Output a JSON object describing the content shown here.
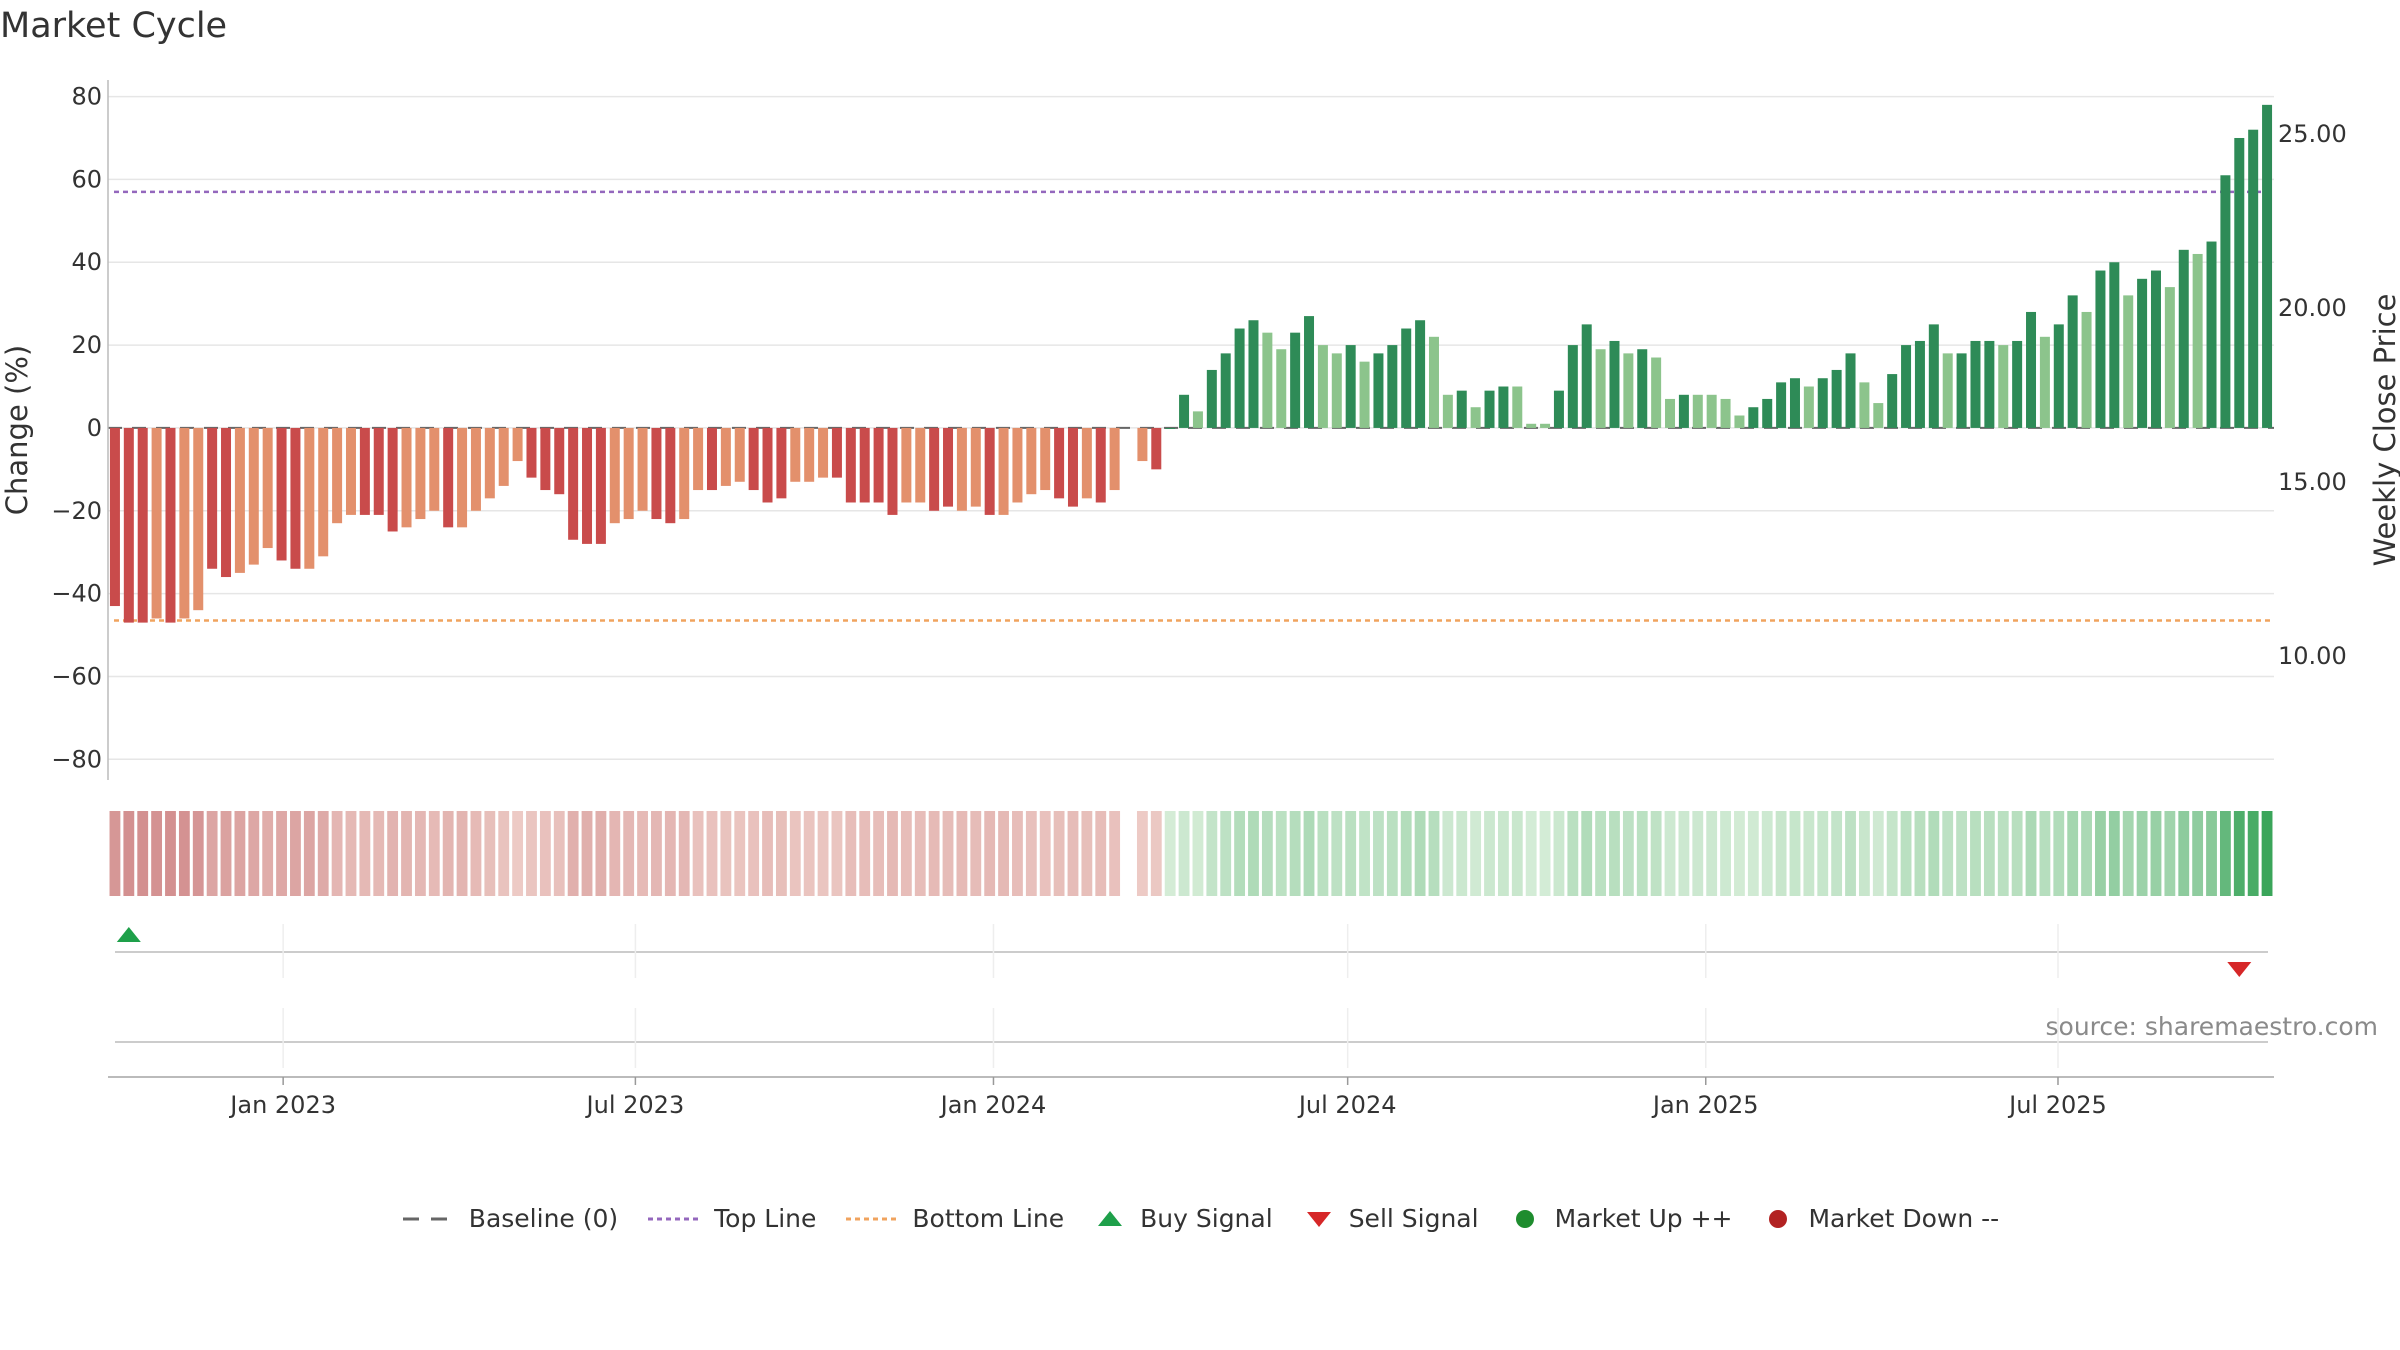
{
  "title": "Market Cycle",
  "source": "source: sharemaestro.com",
  "colors": {
    "neg_strong": "#c94b4b",
    "neg_light": "#e3906c",
    "pos_strong": "#2e8b57",
    "pos_light": "#8cc48c",
    "top_line": "#9467bd",
    "bottom_line": "#f0a35e",
    "buy": "#1ea04a",
    "sell": "#d62728",
    "up_marker": "#1e8c2e",
    "down_marker": "#b22222",
    "baseline": "#666666"
  },
  "legend": [
    {
      "key": "baseline",
      "label": "Baseline (0)",
      "icon": "dash-line-icon"
    },
    {
      "key": "top",
      "label": "Top Line",
      "icon": "dotted-line-icon"
    },
    {
      "key": "bottom",
      "label": "Bottom Line",
      "icon": "dotted-line-icon"
    },
    {
      "key": "buy",
      "label": "Buy Signal",
      "icon": "triangle-up-icon"
    },
    {
      "key": "sell",
      "label": "Sell Signal",
      "icon": "triangle-down-icon"
    },
    {
      "key": "up",
      "label": "Market Up ++",
      "icon": "circle-icon"
    },
    {
      "key": "down",
      "label": "Market Down --",
      "icon": "circle-icon"
    }
  ],
  "chart_data": {
    "type": "bar",
    "title": "Market Cycle",
    "ylabel": "Change (%)",
    "y2label": "Weekly Close Price",
    "ylim": [
      -85,
      84
    ],
    "yticks": [
      80,
      60,
      40,
      20,
      0,
      -20,
      -40,
      -60,
      -80
    ],
    "yticklabels": [
      "80",
      "60",
      "40",
      "20",
      "0",
      "−20",
      "−40",
      "−60",
      "−80"
    ],
    "y2ticks": [
      25.0,
      20.0,
      15.0,
      10.0
    ],
    "y2ticklabels": [
      "25.00",
      "20.00",
      "15.00",
      "10.00"
    ],
    "top_line": 57,
    "bottom_line": -46.5,
    "baseline": 0,
    "x_start": "2022-10-03",
    "x_end": "2025-10-20",
    "xticks": [
      "2023-01-01",
      "2023-07-01",
      "2024-01-01",
      "2024-07-01",
      "2025-01-01",
      "2025-07-01"
    ],
    "xticklabels": [
      "Jan 2023",
      "Jul 2023",
      "Jan 2024",
      "Jul 2024",
      "Jan 2025",
      "Jul 2025"
    ],
    "values": [
      -43,
      -47,
      -47,
      -46,
      -47,
      -46,
      -44,
      -34,
      -36,
      -35,
      -33,
      -29,
      -32,
      -34,
      -34,
      -31,
      -23,
      -21,
      -21,
      -21,
      -25,
      -24,
      -22,
      -20,
      -24,
      -24,
      -20,
      -17,
      -14,
      -8,
      -12,
      -15,
      -16,
      -27,
      -28,
      -28,
      -23,
      -22,
      -20,
      -22,
      -23,
      -22,
      -15,
      -15,
      -14,
      -13,
      -15,
      -18,
      -17,
      -13,
      -13,
      -12,
      -12,
      -18,
      -18,
      -18,
      -21,
      -18,
      -18,
      -20,
      -19,
      -20,
      -19,
      -21,
      -21,
      -18,
      -16,
      -15,
      -17,
      -19,
      -17,
      -18,
      -15,
      null,
      -8,
      -10,
      0,
      8,
      4,
      14,
      18,
      24,
      26,
      23,
      19,
      23,
      27,
      20,
      18,
      20,
      16,
      18,
      20,
      24,
      26,
      22,
      8,
      9,
      5,
      9,
      10,
      10,
      1,
      1,
      9,
      20,
      25,
      19,
      21,
      18,
      19,
      17,
      7,
      8,
      8,
      8,
      7,
      3,
      5,
      7,
      11,
      12,
      10,
      12,
      14,
      18,
      11,
      6,
      13,
      20,
      21,
      25,
      18,
      18,
      21,
      21,
      20,
      21,
      28,
      22,
      25,
      32,
      28,
      38,
      40,
      32,
      36,
      38,
      34,
      43,
      42,
      45,
      61,
      70,
      72,
      78
    ],
    "strength": [
      1,
      1,
      1,
      0,
      1,
      0,
      0,
      1,
      1,
      0,
      0,
      0,
      1,
      1,
      0,
      0,
      0,
      0,
      1,
      1,
      1,
      0,
      0,
      0,
      1,
      0,
      0,
      0,
      0,
      0,
      1,
      1,
      1,
      1,
      1,
      1,
      0,
      0,
      0,
      1,
      1,
      0,
      0,
      1,
      0,
      0,
      1,
      1,
      1,
      0,
      0,
      0,
      1,
      1,
      1,
      1,
      1,
      0,
      0,
      1,
      1,
      0,
      0,
      1,
      0,
      0,
      0,
      0,
      1,
      1,
      0,
      1,
      0,
      0,
      0,
      1,
      1,
      1,
      0,
      1,
      1,
      1,
      1,
      0,
      0,
      1,
      1,
      0,
      0,
      1,
      0,
      1,
      1,
      1,
      1,
      0,
      0,
      1,
      0,
      1,
      1,
      0,
      0,
      0,
      1,
      1,
      1,
      0,
      1,
      0,
      1,
      0,
      0,
      1,
      0,
      0,
      0,
      0,
      1,
      1,
      1,
      1,
      0,
      1,
      1,
      1,
      0,
      0,
      1,
      1,
      1,
      1,
      0,
      1,
      1,
      1,
      0,
      1,
      1,
      0,
      1,
      1,
      0,
      1,
      1,
      0,
      1,
      1,
      0,
      1,
      0,
      1,
      1,
      1,
      1,
      1
    ],
    "buy_signals": [
      1
    ],
    "sell_signals": [
      153
    ],
    "grid": true,
    "legend_position": "bottom-center"
  }
}
